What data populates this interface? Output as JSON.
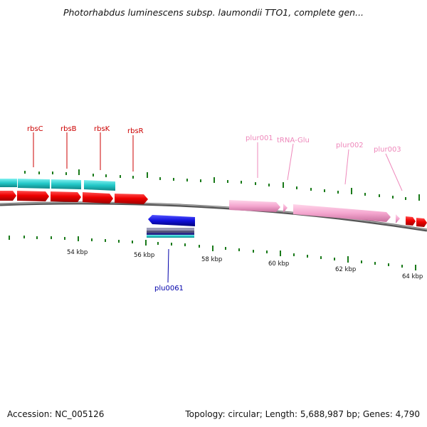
{
  "title": "Photorhabdus luminescens subsp. laumondii TTO1, complete gen...",
  "footer": {
    "accession": "Accession: NC_005126",
    "summary": "Topology: circular; Length: 5,688,987 bp; Genes: 4,790"
  },
  "colors": {
    "red_gene": "#ee0000",
    "cyan_gene": "#22c8c8",
    "blue_gene": "#1010dd",
    "pink_gene": "#f4a6cf",
    "tick": "#1a7a1a",
    "backbone": "#777777"
  },
  "ticks": [
    {
      "label": "54 kbp"
    },
    {
      "label": "56 kbp"
    },
    {
      "label": "58 kbp"
    },
    {
      "label": "60 kbp"
    },
    {
      "label": "62 kbp"
    },
    {
      "label": "64 kbp"
    }
  ],
  "gene_labels": [
    {
      "name": "rbsC",
      "color": "#cc0000"
    },
    {
      "name": "rbsB",
      "color": "#cc0000"
    },
    {
      "name": "rbsK",
      "color": "#cc0000"
    },
    {
      "name": "rbsR",
      "color": "#cc0000"
    },
    {
      "name": "plur001",
      "color": "#ee88bb"
    },
    {
      "name": "tRNA-Glu",
      "color": "#ee88bb"
    },
    {
      "name": "plur002",
      "color": "#ee88bb"
    },
    {
      "name": "plur003",
      "color": "#ee88bb"
    },
    {
      "name": "plu0061",
      "color": "#0000aa"
    }
  ]
}
